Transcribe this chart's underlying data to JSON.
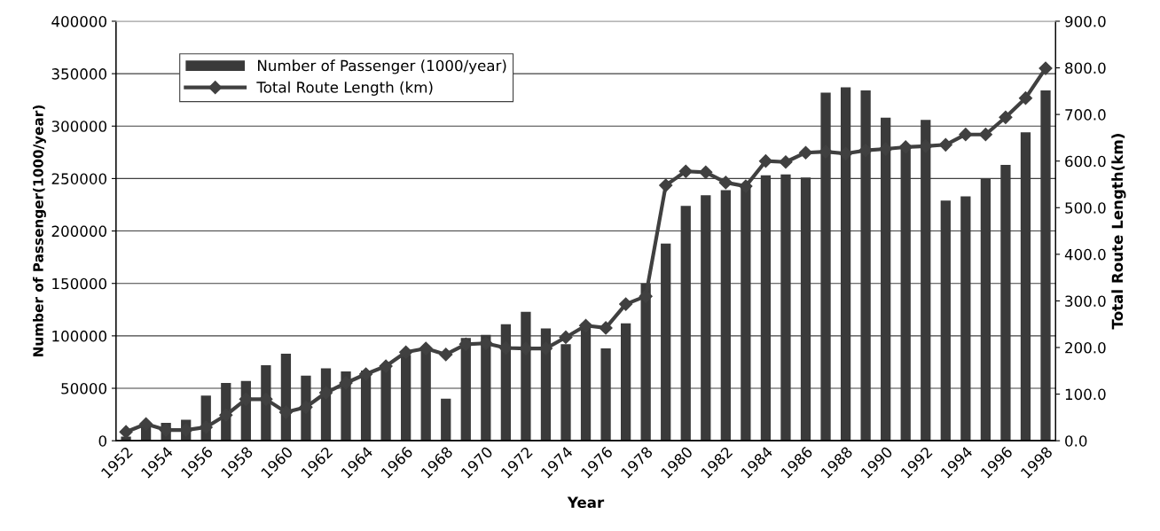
{
  "chart_data": {
    "type": "bar",
    "xlabel": "Year",
    "ylabel": "Number of Passenger(1000/year)",
    "y2label": "Total Route Length(km)",
    "categories": [
      "1952",
      null,
      "1954",
      null,
      "1956",
      null,
      "1958",
      null,
      "1960",
      null,
      "1962",
      null,
      "1964",
      null,
      "1966",
      null,
      "1968",
      null,
      "1970",
      null,
      "1972",
      null,
      "1974",
      null,
      "1976",
      null,
      "1978",
      null,
      "1980",
      null,
      "1982",
      null,
      "1984",
      null,
      "1986",
      null,
      "1988",
      null,
      "1990",
      null,
      "1992",
      null,
      "1994",
      null,
      "1996",
      null,
      "1998"
    ],
    "series": [
      {
        "name": "Number of Passenger (1000/year)",
        "color": "#3a3a3a",
        "values": [
          4000,
          15000,
          17000,
          20000,
          43000,
          55000,
          57000,
          72000,
          83000,
          62000,
          69000,
          66000,
          67000,
          71000,
          82000,
          86000,
          40000,
          98000,
          101000,
          111000,
          123000,
          107000,
          92000,
          112000,
          88000,
          112000,
          150000,
          188000,
          224000,
          234000,
          239000,
          243000,
          253000,
          254000,
          251000,
          332000,
          337000,
          334000,
          308000,
          282000,
          306000,
          229000,
          233000,
          250000,
          263000,
          294000,
          334000
        ]
      },
      {
        "name": "Total Route Length (km)",
        "type": "line",
        "axis": "y2",
        "color": "#404040",
        "marker": "diamond",
        "values": [
          19,
          36,
          23,
          23,
          29,
          55,
          89,
          89,
          61,
          72,
          103,
          124,
          143,
          160,
          190,
          198,
          185,
          207,
          209,
          199,
          198,
          198,
          222,
          247,
          242,
          293,
          310,
          548,
          578,
          576,
          554,
          546,
          600,
          598,
          618,
          620,
          616,
          623,
          626,
          630,
          632,
          635,
          657,
          657,
          694,
          735,
          799
        ]
      }
    ],
    "ylim": [
      0,
      400000
    ],
    "yticks": [
      0,
      50000,
      100000,
      150000,
      200000,
      250000,
      300000,
      350000,
      400000
    ],
    "y2lim": [
      0,
      900
    ],
    "y2ticks": [
      {
        "value": 0,
        "label": "0.0"
      },
      {
        "value": 100,
        "label": "100.0"
      },
      {
        "value": 200,
        "label": "200.0"
      },
      {
        "value": 300,
        "label": "300.0"
      },
      {
        "value": 400,
        "label": "400.0"
      },
      {
        "value": 500,
        "label": "500.0"
      },
      {
        "value": 600,
        "label": "600.0"
      },
      {
        "value": 700,
        "label": "700.0"
      },
      {
        "value": 800,
        "label": "800.0"
      },
      {
        "value": 900,
        "label": "900.0"
      }
    ],
    "grid": "y",
    "legend": "top left"
  }
}
